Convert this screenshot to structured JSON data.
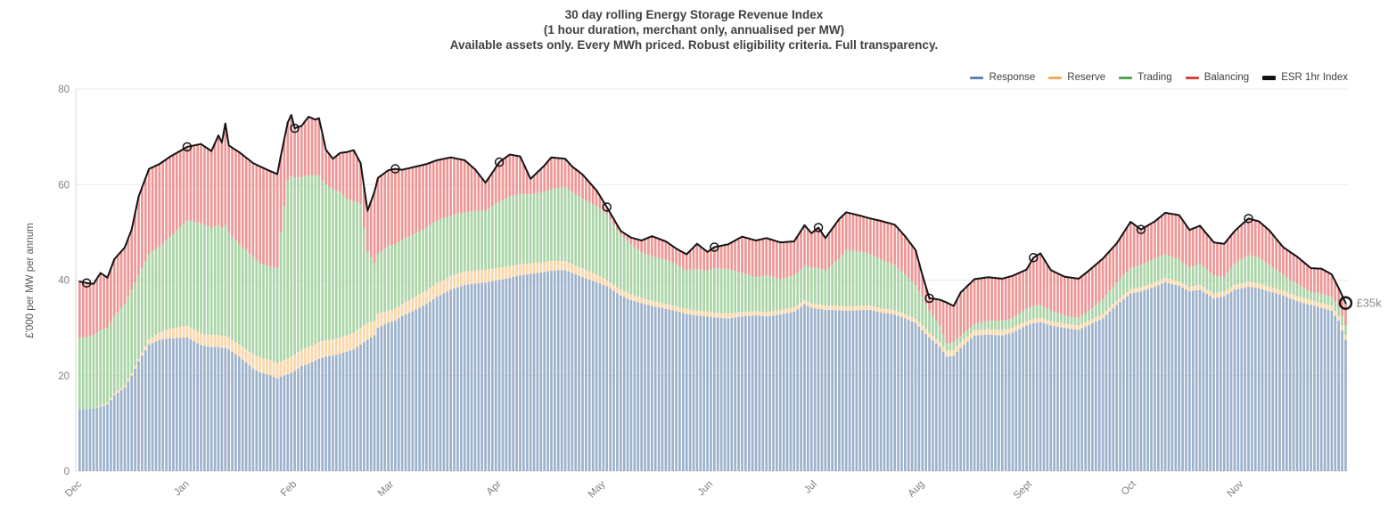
{
  "chart_data": {
    "type": "stacked-bar+line",
    "title_lines": [
      "30 day rolling Energy Storage Revenue Index",
      "(1 hour duration, merchant only, annualised per MW)",
      "Available assets only.  Every MWh priced.  Robust eligibility criteria.  Full transparency."
    ],
    "ylabel": "£'000 per MW per annum",
    "yticks": [
      0,
      20,
      40,
      60,
      80
    ],
    "ylim": [
      0,
      80
    ],
    "grid": "horizontal",
    "legend_position": "top-right",
    "legend": [
      {
        "label": "Response",
        "color": "#5b84ad"
      },
      {
        "label": "Reserve",
        "color": "#f2aa63"
      },
      {
        "label": "Trading",
        "color": "#54a354"
      },
      {
        "label": "Balancing",
        "color": "#d64040"
      },
      {
        "label": "ESR 1hr Index",
        "color": "#111111"
      }
    ],
    "bar_colors": {
      "response": "#9cb1cb",
      "reserve": "#fbd6a9",
      "trading": "#a9d4a5",
      "balancing": "#ee9595"
    },
    "line_color": "#141414",
    "axis_text_color": "#808080",
    "x_unit": "days from 1 Dec (30-day rolling daily values)",
    "month_ticks": [
      {
        "day": 0,
        "label": "Dec"
      },
      {
        "day": 31,
        "label": "Jan"
      },
      {
        "day": 62,
        "label": "Feb"
      },
      {
        "day": 90,
        "label": "Mar"
      },
      {
        "day": 121,
        "label": "Apr"
      },
      {
        "day": 151,
        "label": "May"
      },
      {
        "day": 182,
        "label": "Jun"
      },
      {
        "day": 212,
        "label": "Jul"
      },
      {
        "day": 243,
        "label": "Aug"
      },
      {
        "day": 274,
        "label": "Sept"
      },
      {
        "day": 304,
        "label": "Oct"
      },
      {
        "day": 335,
        "label": "Nov"
      }
    ],
    "stack_note": "rows = [day, response_cum, reserve_cum, trading_cum, esr_index_total] in £k per MW per annum; series value = difference from band below; esr index = stack top line",
    "rows": [
      [
        0,
        13.0,
        13.0,
        28.0,
        39.7
      ],
      [
        2,
        13.0,
        13.0,
        28.0,
        39.4
      ],
      [
        4,
        13.2,
        13.2,
        28.5,
        39.2
      ],
      [
        6,
        13.5,
        13.7,
        29.5,
        41.5
      ],
      [
        8,
        14.0,
        14.3,
        30.0,
        40.5
      ],
      [
        10,
        15.9,
        16.3,
        32.4,
        44.4
      ],
      [
        13,
        17.5,
        18.0,
        35.0,
        46.8
      ],
      [
        15,
        20.0,
        20.5,
        38.0,
        50.6
      ],
      [
        17,
        23.0,
        23.5,
        41.0,
        57.5
      ],
      [
        20,
        26.5,
        27.5,
        45.5,
        63.3
      ],
      [
        23,
        27.5,
        29.0,
        47.0,
        64.3
      ],
      [
        26,
        27.8,
        29.8,
        49.0,
        65.8
      ],
      [
        31,
        28.0,
        30.5,
        52.5,
        67.9
      ],
      [
        35,
        26.4,
        28.8,
        51.9,
        68.5
      ],
      [
        38,
        26.0,
        28.5,
        51.0,
        67.0
      ],
      [
        40,
        26.0,
        28.5,
        51.5,
        70.3
      ],
      [
        41,
        25.8,
        28.3,
        51.0,
        68.8
      ],
      [
        42,
        25.8,
        28.3,
        51.5,
        72.8
      ],
      [
        43,
        25.5,
        28.0,
        50.0,
        68.2
      ],
      [
        46,
        24.0,
        26.5,
        47.5,
        66.8
      ],
      [
        50,
        21.5,
        24.5,
        44.9,
        64.5
      ],
      [
        52,
        20.7,
        23.8,
        43.5,
        63.8
      ],
      [
        55,
        20.1,
        23.2,
        42.8,
        62.8
      ],
      [
        57,
        19.4,
        22.6,
        42.5,
        62.2
      ],
      [
        58,
        19.8,
        23.0,
        50.0,
        66.0
      ],
      [
        60,
        20.3,
        23.6,
        61.0,
        73.0
      ],
      [
        61,
        20.6,
        24.0,
        61.8,
        74.6
      ],
      [
        62,
        21.0,
        24.4,
        61.5,
        71.8
      ],
      [
        64,
        22.0,
        25.4,
        61.5,
        72.3
      ],
      [
        66,
        22.5,
        26.0,
        62.0,
        74.2
      ],
      [
        68,
        23.2,
        26.6,
        62.0,
        73.6
      ],
      [
        69,
        23.5,
        27.0,
        61.8,
        73.9
      ],
      [
        71,
        24.0,
        27.4,
        60.0,
        67.3
      ],
      [
        73,
        24.2,
        27.6,
        59.0,
        65.4
      ],
      [
        75,
        24.6,
        28.0,
        58.5,
        66.6
      ],
      [
        77,
        25.0,
        28.4,
        57.0,
        66.8
      ],
      [
        79,
        25.5,
        29.0,
        56.5,
        67.2
      ],
      [
        81,
        26.5,
        30.0,
        56.0,
        64.5
      ],
      [
        83,
        27.5,
        31.0,
        46.0,
        54.5
      ],
      [
        85,
        28.5,
        31.5,
        43.5,
        58.5
      ],
      [
        86,
        30.0,
        33.0,
        45.5,
        61.4
      ],
      [
        89,
        31.1,
        33.6,
        47.2,
        63.0
      ],
      [
        91,
        31.5,
        34.0,
        47.5,
        63.3
      ],
      [
        93,
        32.5,
        35.0,
        48.5,
        63.1
      ],
      [
        96,
        33.5,
        36.2,
        49.5,
        63.6
      ],
      [
        100,
        35.0,
        37.8,
        51.0,
        64.3
      ],
      [
        103,
        36.5,
        39.3,
        52.5,
        65.1
      ],
      [
        107,
        38.0,
        40.8,
        53.5,
        65.7
      ],
      [
        111,
        39.0,
        41.8,
        54.2,
        65.1
      ],
      [
        114,
        39.3,
        42.0,
        54.5,
        63.2
      ],
      [
        117,
        39.5,
        42.2,
        54.5,
        60.4
      ],
      [
        119,
        39.8,
        42.4,
        55.5,
        62.5
      ],
      [
        121,
        40.0,
        42.6,
        56.5,
        64.7
      ],
      [
        124,
        40.5,
        42.9,
        57.5,
        66.3
      ],
      [
        127,
        41.0,
        43.3,
        58.0,
        65.9
      ],
      [
        130,
        41.3,
        43.5,
        58.0,
        61.2
      ],
      [
        134,
        41.7,
        43.8,
        58.5,
        64.0
      ],
      [
        136,
        42.0,
        44.0,
        59.0,
        65.7
      ],
      [
        140,
        42.1,
        44.0,
        59.5,
        65.4
      ],
      [
        142,
        41.5,
        43.3,
        58.5,
        63.8
      ],
      [
        145,
        40.6,
        42.4,
        57.0,
        62.1
      ],
      [
        149,
        39.6,
        41.2,
        55.5,
        58.8
      ],
      [
        152,
        38.7,
        40.0,
        53.8,
        55.3
      ],
      [
        156,
        36.8,
        38.0,
        49.5,
        50.3
      ],
      [
        159,
        35.8,
        37.0,
        47.5,
        48.9
      ],
      [
        162,
        35.2,
        36.3,
        45.8,
        48.3
      ],
      [
        165,
        34.6,
        35.7,
        45.0,
        49.2
      ],
      [
        169,
        34.0,
        35.0,
        44.3,
        48.1
      ],
      [
        172,
        33.5,
        34.5,
        43.3,
        46.6
      ],
      [
        175,
        32.9,
        33.9,
        42.0,
        45.4
      ],
      [
        178,
        32.6,
        33.6,
        42.3,
        47.6
      ],
      [
        181,
        32.4,
        33.4,
        42.0,
        45.9
      ],
      [
        183,
        32.2,
        33.2,
        42.5,
        46.9
      ],
      [
        187,
        32.0,
        33.0,
        42.3,
        47.5
      ],
      [
        191,
        32.4,
        33.3,
        41.5,
        49.1
      ],
      [
        195,
        32.6,
        33.5,
        40.6,
        48.3
      ],
      [
        198,
        32.4,
        33.3,
        41.0,
        48.8
      ],
      [
        202,
        32.8,
        33.7,
        40.2,
        47.9
      ],
      [
        206,
        33.4,
        34.3,
        41.0,
        48.1
      ],
      [
        209,
        34.9,
        35.8,
        43.0,
        51.5
      ],
      [
        211,
        34.2,
        35.1,
        42.6,
        49.8
      ],
      [
        213,
        34.0,
        34.9,
        42.5,
        51.0
      ],
      [
        215,
        33.8,
        34.7,
        42.0,
        48.8
      ],
      [
        219,
        33.7,
        34.6,
        44.5,
        52.8
      ],
      [
        221,
        33.6,
        34.5,
        46.3,
        54.2
      ],
      [
        225,
        33.7,
        34.6,
        46.0,
        53.5
      ],
      [
        228,
        33.8,
        34.7,
        45.5,
        52.9
      ],
      [
        231,
        33.2,
        34.1,
        44.3,
        52.4
      ],
      [
        235,
        32.8,
        33.7,
        43.2,
        51.6
      ],
      [
        238,
        32.0,
        32.9,
        41.2,
        49.2
      ],
      [
        241,
        31.0,
        31.9,
        39.0,
        46.3
      ],
      [
        243,
        29.5,
        30.5,
        36.5,
        41.0
      ],
      [
        245,
        28.0,
        29.0,
        33.5,
        36.2
      ],
      [
        248,
        26.0,
        27.0,
        30.5,
        35.9
      ],
      [
        250,
        24.0,
        25.2,
        26.7,
        35.3
      ],
      [
        252,
        24.2,
        25.4,
        27.0,
        34.6
      ],
      [
        254,
        25.8,
        27.0,
        28.3,
        37.4
      ],
      [
        258,
        28.4,
        29.5,
        30.8,
        40.2
      ],
      [
        262,
        28.6,
        29.7,
        31.5,
        40.6
      ],
      [
        266,
        28.4,
        29.5,
        31.5,
        40.3
      ],
      [
        269,
        29.0,
        30.0,
        32.0,
        40.9
      ],
      [
        273,
        30.5,
        31.4,
        34.0,
        42.2
      ],
      [
        275,
        31.0,
        31.9,
        34.6,
        44.7
      ],
      [
        277,
        31.2,
        32.1,
        34.8,
        45.6
      ],
      [
        280,
        30.5,
        31.4,
        33.6,
        42.1
      ],
      [
        284,
        30.0,
        30.9,
        32.6,
        40.7
      ],
      [
        288,
        29.6,
        30.5,
        32.1,
        40.3
      ],
      [
        291,
        30.6,
        31.5,
        33.6,
        42.0
      ],
      [
        295,
        32.0,
        32.9,
        36.0,
        44.5
      ],
      [
        299,
        34.8,
        35.7,
        39.5,
        47.7
      ],
      [
        303,
        37.2,
        38.1,
        42.5,
        52.2
      ],
      [
        306,
        37.6,
        38.5,
        43.2,
        50.6
      ],
      [
        310,
        38.6,
        39.5,
        44.5,
        52.3
      ],
      [
        313,
        39.6,
        40.5,
        45.4,
        54.1
      ],
      [
        317,
        38.8,
        39.7,
        44.3,
        53.6
      ],
      [
        320,
        37.7,
        38.6,
        42.6,
        50.5
      ],
      [
        323,
        38.0,
        39.0,
        43.5,
        51.4
      ],
      [
        327,
        36.2,
        37.2,
        40.9,
        47.9
      ],
      [
        330,
        36.6,
        37.6,
        40.6,
        47.6
      ],
      [
        333,
        38.0,
        39.0,
        43.5,
        50.3
      ],
      [
        337,
        38.6,
        39.6,
        45.2,
        52.9
      ],
      [
        340,
        38.3,
        39.3,
        44.7,
        52.3
      ],
      [
        343,
        37.6,
        38.6,
        43.2,
        50.4
      ],
      [
        347,
        36.8,
        37.8,
        41.0,
        46.9
      ],
      [
        351,
        35.6,
        36.6,
        39.2,
        44.9
      ],
      [
        355,
        34.8,
        35.8,
        37.5,
        42.5
      ],
      [
        358,
        34.2,
        35.2,
        37.2,
        42.4
      ],
      [
        361,
        33.6,
        34.6,
        36.5,
        41.2
      ],
      [
        363,
        31.5,
        32.5,
        34.5,
        38.3
      ],
      [
        365,
        27.5,
        28.5,
        30.5,
        35.2
      ]
    ],
    "month_marker_days": [
      2,
      31,
      62,
      91,
      121,
      152,
      183,
      213,
      245,
      275,
      306,
      337,
      365
    ],
    "end_annotation": {
      "label": "£35k",
      "day": 365,
      "value": 35.2,
      "color": "#8c8c8c"
    }
  }
}
